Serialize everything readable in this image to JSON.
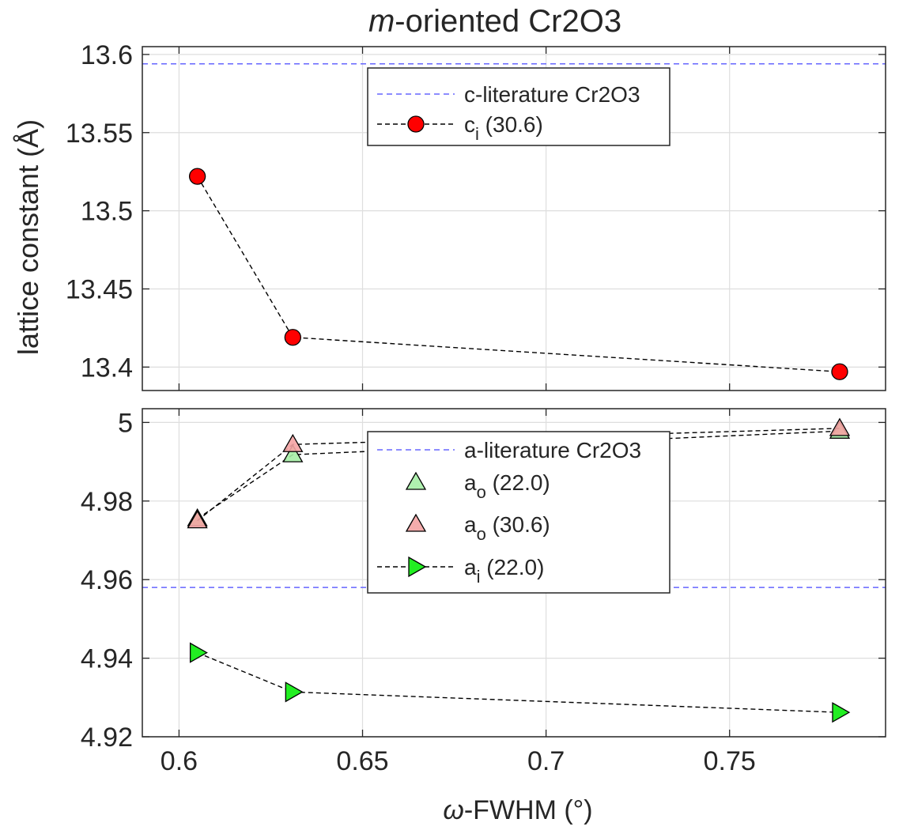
{
  "figure": {
    "title_prefix": "m",
    "title_suffix": "-oriented Cr2O3",
    "ylabel": "lattice constant (Å)",
    "xlabel_symbol": "ω",
    "xlabel_suffix": "-FWHM (°)"
  },
  "chart_data": [
    {
      "type": "line",
      "xlim": [
        0.59,
        0.7925
      ],
      "ylim": [
        13.385,
        13.605
      ],
      "xticks": [
        0.6,
        0.65,
        0.7,
        0.75
      ],
      "yticks": [
        13.4,
        13.45,
        13.5,
        13.55,
        13.6
      ],
      "ytick_labels": [
        "13.4",
        "13.45",
        "13.5",
        "13.55",
        "13.6"
      ],
      "grid": true,
      "legend_position": "top-center",
      "reference_lines": [
        {
          "name": "c-literature Cr2O3",
          "y": 13.594,
          "color": "#6666ff"
        }
      ],
      "series": [
        {
          "name_base": "c",
          "name_sub": "i",
          "name_rest": " (30.6)",
          "marker": "circle",
          "color": "#ff0000",
          "x": [
            0.605,
            0.631,
            0.78
          ],
          "y": [
            13.522,
            13.419,
            13.397
          ]
        }
      ]
    },
    {
      "type": "line",
      "xlim": [
        0.59,
        0.7925
      ],
      "ylim": [
        4.92,
        5.0035
      ],
      "xticks": [
        0.6,
        0.65,
        0.7,
        0.75
      ],
      "xtick_labels": [
        "0.6",
        "0.65",
        "0.7",
        "0.75"
      ],
      "yticks": [
        4.92,
        4.94,
        4.96,
        4.98,
        5.0
      ],
      "ytick_labels": [
        "4.92",
        "4.94",
        "4.96",
        "4.98",
        "5"
      ],
      "grid": true,
      "legend_position": "center",
      "reference_lines": [
        {
          "name": "a-literature Cr2O3",
          "y": 4.958,
          "color": "#6666ff"
        }
      ],
      "series": [
        {
          "name_base": "a",
          "name_sub": "o",
          "name_rest": " (22.0)",
          "marker": "triangle-up",
          "color": "#a6f0a6",
          "x": [
            0.605,
            0.631,
            0.78
          ],
          "y": [
            4.9755,
            4.9918,
            4.9978
          ]
        },
        {
          "name_base": "a",
          "name_sub": "o",
          "name_rest": " (30.6)",
          "marker": "triangle-up",
          "color": "#f4a3a3",
          "x": [
            0.605,
            0.631,
            0.78
          ],
          "y": [
            4.975,
            4.9944,
            4.9985
          ]
        },
        {
          "name_base": "a",
          "name_sub": "i",
          "name_rest": " (22.0)",
          "marker": "triangle-right",
          "color": "#22ee22",
          "x": [
            0.605,
            0.631,
            0.78
          ],
          "y": [
            4.9414,
            4.9314,
            4.9262
          ]
        }
      ]
    }
  ]
}
